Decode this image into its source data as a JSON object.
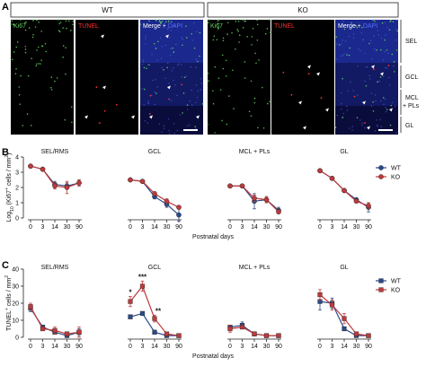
{
  "panels": {
    "A": "A",
    "B": "B",
    "C": "C"
  },
  "colors": {
    "wt": "#2b4a8b",
    "ko": "#c0393b",
    "ki67": "#5fd35f",
    "tunel": "#ff3030",
    "dapi": "#3a4dff"
  },
  "panel_a": {
    "wt_label": "WT",
    "ko_label": "KO",
    "wt_channels": [
      {
        "text": "Ki67",
        "color": "#5fd35f"
      },
      {
        "text": "TUNEL",
        "color": "#ff3030"
      },
      {
        "text": "Merge + ",
        "color": "#ffffff",
        "extra": "DAPI",
        "extra_color": "#5a6dff"
      }
    ],
    "ko_channels": [
      {
        "text": "Ki67",
        "color": "#5fd35f"
      },
      {
        "text": "TUNEL",
        "color": "#ff3030"
      },
      {
        "text": "Merge + ",
        "color": "#ffffff",
        "extra": "DAPI",
        "extra_color": "#5a6dff"
      }
    ],
    "layers": [
      "SEL",
      "GCL",
      "MCL",
      "+ PLs",
      "GL"
    ]
  },
  "chart_data": [
    {
      "type": "line",
      "ylabel": "Log10 (Ki67+ cells / mm2)",
      "ylabel_parts": [
        "Log",
        "10",
        " (Ki67",
        "+",
        " cells / mm",
        "2",
        ")"
      ],
      "xlabel": "Postnatal days",
      "ylim": [
        0,
        4
      ],
      "yticks": [
        "0",
        "1",
        "2",
        "3",
        "4"
      ],
      "x": [
        0,
        3,
        14,
        30,
        90
      ],
      "xticks": [
        "0",
        "3",
        "14",
        "30",
        "90"
      ],
      "legend": [
        "WT",
        "KO"
      ],
      "subplots": [
        {
          "title": "SEL/RMS",
          "series": [
            {
              "name": "WT",
              "values": [
                3.4,
                3.2,
                2.2,
                2.1,
                2.3
              ],
              "err": [
                0.05,
                0.05,
                0.2,
                0.2,
                0.2
              ]
            },
            {
              "name": "KO",
              "values": [
                3.4,
                3.2,
                2.1,
                2.0,
                2.3
              ],
              "err": [
                0.05,
                0.05,
                0.2,
                0.4,
                0.2
              ]
            }
          ]
        },
        {
          "title": "GCL",
          "series": [
            {
              "name": "WT",
              "values": [
                2.5,
                2.4,
                1.4,
                0.9,
                0.2
              ],
              "err": [
                0.05,
                0.05,
                0.15,
                0.2,
                0.4
              ]
            },
            {
              "name": "KO",
              "values": [
                2.5,
                2.4,
                1.6,
                1.1,
                0.7
              ],
              "err": [
                0.05,
                0.05,
                0.1,
                0.15,
                0.1
              ]
            }
          ]
        },
        {
          "title": "MCL + PLs",
          "series": [
            {
              "name": "WT",
              "values": [
                2.1,
                2.1,
                1.1,
                1.2,
                0.5
              ],
              "err": [
                0.05,
                0.05,
                0.5,
                0.2,
                0.2
              ]
            },
            {
              "name": "KO",
              "values": [
                2.1,
                2.1,
                1.3,
                1.2,
                0.4
              ],
              "err": [
                0.05,
                0.05,
                0.2,
                0.2,
                0.1
              ]
            }
          ]
        },
        {
          "title": "GL",
          "series": [
            {
              "name": "WT",
              "values": [
                3.1,
                2.6,
                1.8,
                1.2,
                0.7
              ],
              "err": [
                0.05,
                0.05,
                0.1,
                0.1,
                0.3
              ]
            },
            {
              "name": "KO",
              "values": [
                3.1,
                2.6,
                1.8,
                1.1,
                0.8
              ],
              "err": [
                0.05,
                0.05,
                0.1,
                0.1,
                0.2
              ]
            }
          ]
        }
      ]
    },
    {
      "type": "line",
      "ylabel": "TUNEL+ cells / mm2",
      "ylabel_parts": [
        "TUNEL",
        "+",
        " cells / mm",
        "2"
      ],
      "xlabel": "Postnatal days",
      "ylim": [
        0,
        40
      ],
      "yticks": [
        "0",
        "10",
        "20",
        "30",
        "40"
      ],
      "x": [
        0,
        3,
        14,
        30,
        90
      ],
      "xticks": [
        "0",
        "3",
        "14",
        "30",
        "90"
      ],
      "legend": [
        "WT",
        "KO"
      ],
      "subplots": [
        {
          "title": "SEL/RMS",
          "series": [
            {
              "name": "WT",
              "values": [
                17,
                6,
                3,
                1,
                3
              ],
              "err": [
                2,
                1,
                1,
                1,
                2
              ]
            },
            {
              "name": "KO",
              "values": [
                18,
                5,
                4,
                2,
                3
              ],
              "err": [
                2,
                1,
                2,
                1,
                3
              ]
            }
          ]
        },
        {
          "title": "GCL",
          "series": [
            {
              "name": "WT",
              "values": [
                12,
                14,
                3,
                1,
                1
              ],
              "err": [
                1,
                1,
                0.5,
                0.5,
                0.5
              ]
            },
            {
              "name": "KO",
              "values": [
                21,
                30,
                11,
                2,
                1
              ],
              "err": [
                3,
                3,
                2,
                0.5,
                0.5
              ]
            }
          ],
          "annotations": [
            {
              "x": 0,
              "text": "*"
            },
            {
              "x": 3,
              "text": "***"
            },
            {
              "x": 14,
              "text": "**"
            }
          ]
        },
        {
          "title": "MCL + PLs",
          "series": [
            {
              "name": "WT",
              "values": [
                6,
                7,
                2,
                1,
                1
              ],
              "err": [
                1,
                2,
                1,
                0.5,
                0.5
              ]
            },
            {
              "name": "KO",
              "values": [
                5,
                6,
                2,
                1,
                1
              ],
              "err": [
                2,
                1,
                1,
                0.5,
                0.5
              ]
            }
          ]
        },
        {
          "title": "GL",
          "series": [
            {
              "name": "WT",
              "values": [
                21,
                20,
                5,
                1,
                1
              ],
              "err": [
                5,
                3,
                1,
                0.5,
                0.5
              ]
            },
            {
              "name": "KO",
              "values": [
                25,
                19,
                11,
                2,
                1
              ],
              "err": [
                3,
                3,
                3,
                0.5,
                0.5
              ]
            }
          ]
        }
      ]
    }
  ]
}
